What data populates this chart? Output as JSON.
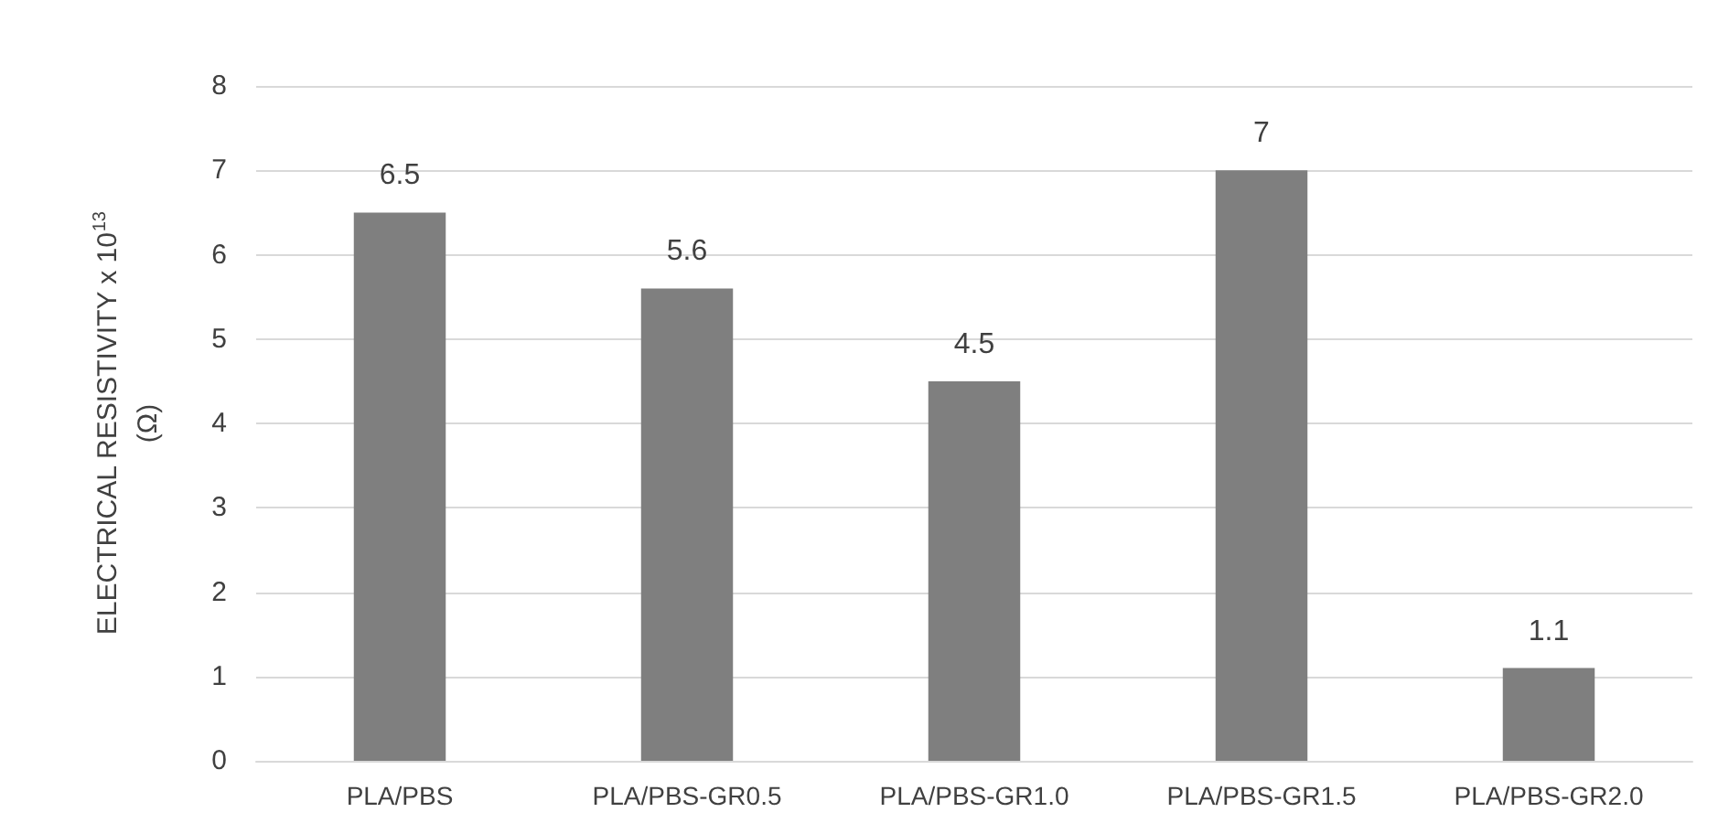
{
  "chart_data": {
    "type": "bar",
    "ylabel": "ELECTRICAL RESISTIVITY x 10$^{13}$ (Ω)",
    "categories": [
      "PLA/PBS",
      "PLA/PBS-GR0.5",
      "PLA/PBS-GR1.0",
      "PLA/PBS-GR1.5",
      "PLA/PBS-GR2.0"
    ],
    "values": [
      6.5,
      5.6,
      4.5,
      7,
      1.1
    ],
    "color": "#7f7f7f",
    "ylim": [
      0,
      8
    ],
    "yticks": [
      0,
      1,
      2,
      3,
      4,
      5,
      6,
      7,
      8
    ],
    "grid": "y",
    "data_labels": true
  }
}
